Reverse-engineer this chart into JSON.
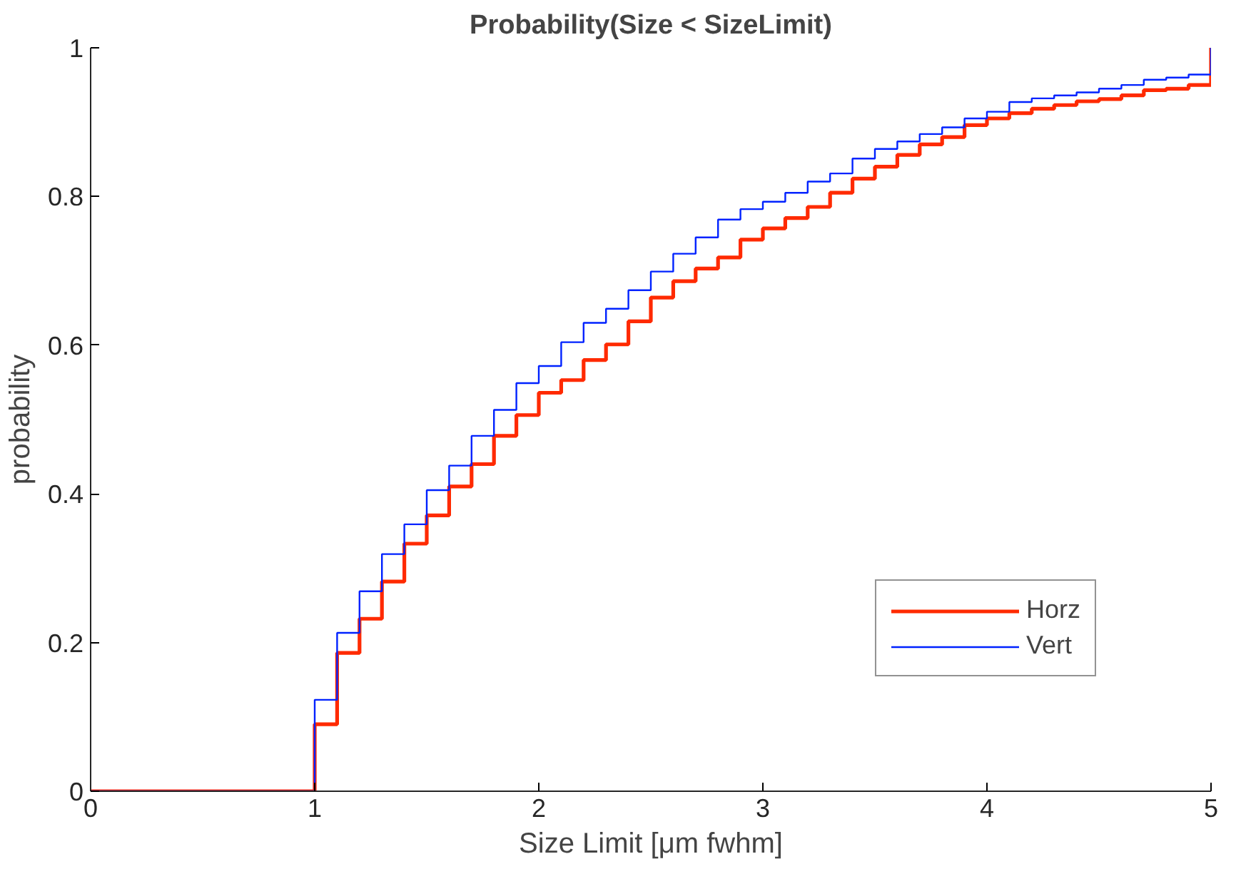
{
  "chart_data": {
    "type": "step",
    "title": "Probability(Size < SizeLimit)",
    "xlabel": "Size Limit [μm fwhm]",
    "ylabel": "probability",
    "x": [
      0,
      1.0,
      1.1,
      1.2,
      1.3,
      1.4,
      1.5,
      1.6,
      1.7,
      1.8,
      1.9,
      2.0,
      2.1,
      2.2,
      2.3,
      2.4,
      2.5,
      2.6,
      2.7,
      2.8,
      2.9,
      3.0,
      3.1,
      3.2,
      3.3,
      3.4,
      3.5,
      3.6,
      3.7,
      3.8,
      3.9,
      4.0,
      4.1,
      4.2,
      4.3,
      4.4,
      4.5,
      4.6,
      4.7,
      4.8,
      4.9,
      5.0
    ],
    "series": [
      {
        "name": "Horz",
        "color": "#ff2a00",
        "values": [
          0,
          0.09,
          0.186,
          0.232,
          0.282,
          0.333,
          0.371,
          0.41,
          0.44,
          0.478,
          0.506,
          0.536,
          0.553,
          0.58,
          0.601,
          0.632,
          0.664,
          0.686,
          0.703,
          0.718,
          0.742,
          0.757,
          0.771,
          0.786,
          0.805,
          0.824,
          0.84,
          0.856,
          0.87,
          0.88,
          0.896,
          0.905,
          0.912,
          0.918,
          0.923,
          0.928,
          0.931,
          0.936,
          0.943,
          0.945,
          0.95,
          1.0
        ]
      },
      {
        "name": "Vert",
        "color": "#0022ff",
        "values": [
          0,
          0.123,
          0.213,
          0.269,
          0.319,
          0.359,
          0.405,
          0.438,
          0.478,
          0.513,
          0.549,
          0.572,
          0.604,
          0.63,
          0.649,
          0.674,
          0.699,
          0.723,
          0.745,
          0.769,
          0.783,
          0.793,
          0.805,
          0.82,
          0.831,
          0.851,
          0.864,
          0.874,
          0.884,
          0.893,
          0.905,
          0.914,
          0.927,
          0.932,
          0.936,
          0.94,
          0.945,
          0.95,
          0.957,
          0.96,
          0.964,
          1.0
        ]
      }
    ],
    "xlim": [
      0,
      5
    ],
    "ylim": [
      0,
      1
    ],
    "xticks": [
      0,
      1,
      2,
      3,
      4,
      5
    ],
    "yticks": [
      0,
      0.2,
      0.4,
      0.6,
      0.8,
      1
    ],
    "legend": "bottom right",
    "grid": false
  }
}
